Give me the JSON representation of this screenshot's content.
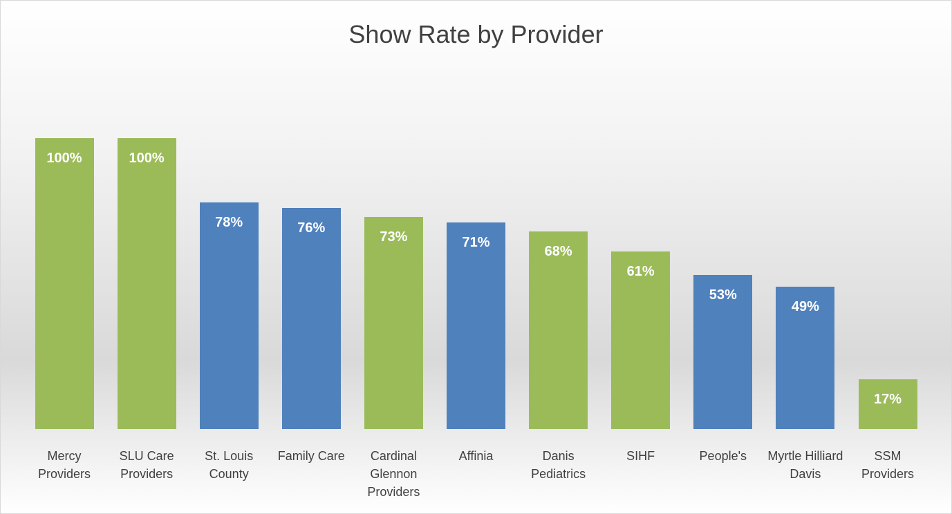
{
  "chart_data": {
    "type": "bar",
    "title": "Show Rate by Provider",
    "categories": [
      "Mercy Providers",
      "SLU Care Providers",
      "St. Louis County",
      "Family Care",
      "Cardinal Glennon Providers",
      "Affinia",
      "Danis Pediatrics",
      "SIHF",
      "People's",
      "Myrtle Hilliard Davis",
      "SSM Providers"
    ],
    "values": [
      100,
      100,
      78,
      76,
      73,
      71,
      68,
      61,
      53,
      49,
      17
    ],
    "value_labels": [
      "100%",
      "100%",
      "78%",
      "76%",
      "73%",
      "71%",
      "68%",
      "61%",
      "53%",
      "49%",
      "17%"
    ],
    "colors": [
      "#9bbb59",
      "#9bbb59",
      "#4f81bd",
      "#4f81bd",
      "#9bbb59",
      "#4f81bd",
      "#9bbb59",
      "#9bbb59",
      "#4f81bd",
      "#4f81bd",
      "#9bbb59"
    ]
  }
}
